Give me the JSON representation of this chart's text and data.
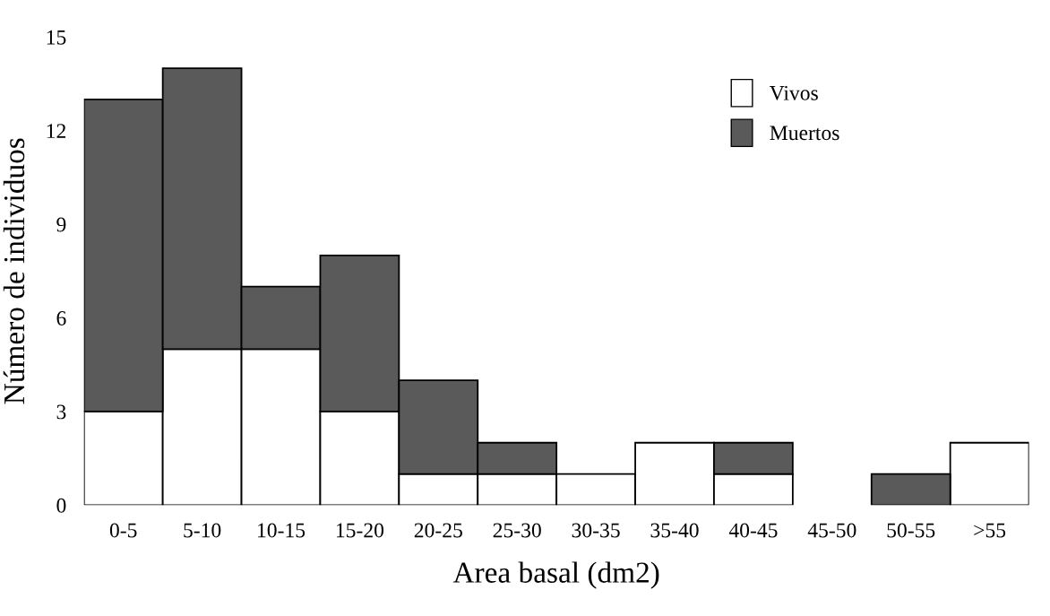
{
  "chart_data": {
    "type": "bar",
    "stacked": true,
    "xlabel": "Area basal (dm2)",
    "ylabel": "Número de individuos",
    "categories": [
      "0-5",
      "5-10",
      "10-15",
      "15-20",
      "20-25",
      "25-30",
      "30-35",
      "35-40",
      "40-45",
      "45-50",
      "50-55",
      ">55"
    ],
    "series": [
      {
        "name": "Vivos",
        "color": "#ffffff",
        "values": [
          3,
          5,
          5,
          3,
          1,
          1,
          1,
          2,
          1,
          0,
          0,
          2
        ]
      },
      {
        "name": "Muertos",
        "color": "#5a5a5a",
        "values": [
          10,
          9,
          2,
          5,
          3,
          1,
          0,
          0,
          1,
          0,
          1,
          0
        ]
      }
    ],
    "ylim": [
      0,
      15
    ],
    "yticks": [
      0,
      3,
      6,
      9,
      12,
      15
    ],
    "grid": false,
    "legend": "top right"
  }
}
